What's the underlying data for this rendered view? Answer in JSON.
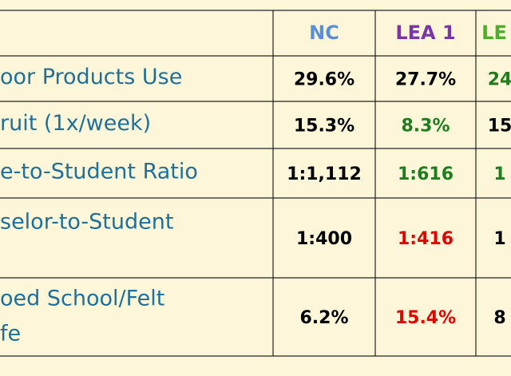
{
  "table": {
    "header": [
      {
        "text": "NC",
        "color": "#5b8ed8"
      },
      {
        "text": "LEA 1",
        "color": "#7a35a8"
      },
      {
        "text": "LE",
        "color": "#4caf2a"
      }
    ],
    "rows": [
      {
        "label": [
          "oor Products Use"
        ],
        "cells": [
          {
            "text": "29.6%",
            "color": "#000000"
          },
          {
            "text": "27.7%",
            "color": "#000000"
          },
          {
            "text": "24",
            "color": "#1e7d1e"
          }
        ]
      },
      {
        "label": [
          "ruit (1x/week)"
        ],
        "cells": [
          {
            "text": "15.3%",
            "color": "#000000"
          },
          {
            "text": "8.3%",
            "color": "#1e7d1e"
          },
          {
            "text": "15",
            "color": "#000000"
          }
        ]
      },
      {
        "label": [
          "e-to-Student Ratio"
        ],
        "cells": [
          {
            "text": "1:1,112",
            "color": "#000000"
          },
          {
            "text": "1:616",
            "color": "#1e7d1e"
          },
          {
            "text": "1",
            "color": "#1e7d1e"
          }
        ]
      },
      {
        "label": [
          "selor-to-Student"
        ],
        "cells": [
          {
            "text": "1:400",
            "color": "#000000"
          },
          {
            "text": "1:416",
            "color": "#e00000"
          },
          {
            "text": "1",
            "color": "#000000"
          }
        ]
      },
      {
        "label": [
          "oed School/Felt",
          "fe"
        ],
        "cells": [
          {
            "text": "6.2%",
            "color": "#000000"
          },
          {
            "text": "15.4%",
            "color": "#e00000"
          },
          {
            "text": "8",
            "color": "#000000"
          }
        ]
      }
    ]
  }
}
